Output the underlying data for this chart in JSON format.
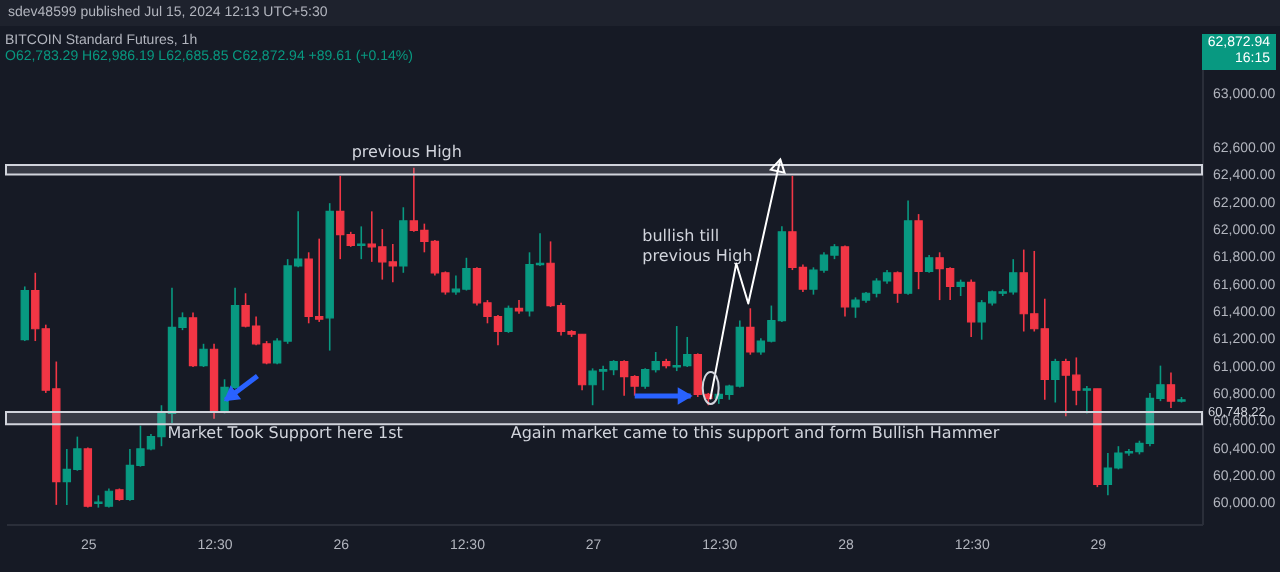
{
  "chart_data": {
    "type": "candlestick",
    "title": "BITCOIN Standard Futures, 1h",
    "subtitle": "O62,783.29 H62,986.19 L62,685.85 C62,872.94 +89.61 (+0.14%)",
    "xlim": [
      "2024-06-24T17:40",
      "2024-06-29T09:30"
    ],
    "xticks": [
      {
        "value": "2024-06-25T00:30",
        "label": "25"
      },
      {
        "value": "2024-06-25T12:30",
        "label": "12:30"
      },
      {
        "value": "2024-06-26T00:30",
        "label": "26"
      },
      {
        "value": "2024-06-26T12:30",
        "label": "12:30"
      },
      {
        "value": "2024-06-27T00:30",
        "label": "27"
      },
      {
        "value": "2024-06-27T12:30",
        "label": "12:30"
      },
      {
        "value": "2024-06-28T00:30",
        "label": "28"
      },
      {
        "value": "2024-06-28T12:30",
        "label": "12:30"
      },
      {
        "value": "2024-06-29T00:30",
        "label": "29"
      }
    ],
    "ylim": [
      59840,
      63180
    ],
    "yticks": [
      {
        "value": 60000,
        "label": "60,000.00"
      },
      {
        "value": 60200,
        "label": "60,200.00"
      },
      {
        "value": 60400,
        "label": "60,400.00"
      },
      {
        "value": 60600,
        "label": "60,600.00"
      },
      {
        "value": 60800,
        "label": "60,800.00"
      },
      {
        "value": 61000,
        "label": "61,000.00"
      },
      {
        "value": 61200,
        "label": "61,200.00"
      },
      {
        "value": 61400,
        "label": "61,400.00"
      },
      {
        "value": 61600,
        "label": "61,600.00"
      },
      {
        "value": 61800,
        "label": "61,800.00"
      },
      {
        "value": 62000,
        "label": "62,000.00"
      },
      {
        "value": 62200,
        "label": "62,200.00"
      },
      {
        "value": 62400,
        "label": "62,400.00"
      },
      {
        "value": 62600,
        "label": "62,600.00"
      },
      {
        "value": 63000,
        "label": "63,000.00"
      }
    ],
    "series": [
      {
        "color": "#089981",
        "x": [
          "2024-06-24T18:30",
          "2024-06-24T22:30",
          "2024-06-24T23:30",
          "2024-06-25T01:30",
          "2024-06-25T02:30",
          "2024-06-25T04:30",
          "2024-06-25T05:30",
          "2024-06-25T06:30",
          "2024-06-25T07:30",
          "2024-06-25T08:30",
          "2024-06-25T09:30",
          "2024-06-25T11:30",
          "2024-06-25T13:30",
          "2024-06-25T14:30",
          "2024-06-25T18:30",
          "2024-06-25T19:30",
          "2024-06-25T20:30",
          "2024-06-25T23:30",
          "2024-06-26T02:30",
          "2024-06-26T06:30",
          "2024-06-26T11:30",
          "2024-06-26T12:30",
          "2024-06-26T16:30",
          "2024-06-26T18:30",
          "2024-06-26T19:30",
          "2024-06-27T00:30",
          "2024-06-27T01:30",
          "2024-06-27T02:30",
          "2024-06-27T05:30",
          "2024-06-27T06:30",
          "2024-06-27T08:30",
          "2024-06-27T09:30",
          "2024-06-27T12:30",
          "2024-06-27T13:30",
          "2024-06-27T14:30",
          "2024-06-27T16:30",
          "2024-06-27T17:30",
          "2024-06-27T18:30",
          "2024-06-27T21:30",
          "2024-06-27T22:30",
          "2024-06-27T23:30",
          "2024-06-28T01:30",
          "2024-06-28T02:30",
          "2024-06-28T03:30",
          "2024-06-28T04:30",
          "2024-06-28T06:30",
          "2024-06-28T08:30",
          "2024-06-28T11:30",
          "2024-06-28T13:30",
          "2024-06-28T14:30",
          "2024-06-28T15:30",
          "2024-06-28T16:30",
          "2024-06-28T20:30",
          "2024-06-28T23:30",
          "2024-06-29T01:30",
          "2024-06-29T02:30",
          "2024-06-29T03:30",
          "2024-06-29T04:30",
          "2024-06-29T05:30",
          "2024-06-29T06:30",
          "2024-06-29T08:30"
        ],
        "ohlc": [
          [
            61190,
            61580,
            61180,
            61550
          ],
          [
            60150,
            60390,
            59980,
            60240
          ],
          [
            60240,
            60480,
            60230,
            60390
          ],
          [
            59990,
            60050,
            59960,
            60000
          ],
          [
            59970,
            60100,
            59960,
            60080
          ],
          [
            60020,
            60390,
            60010,
            60270
          ],
          [
            60270,
            60560,
            60260,
            60390
          ],
          [
            60390,
            60500,
            60380,
            60480
          ],
          [
            60480,
            60710,
            60410,
            60650
          ],
          [
            60650,
            61570,
            60580,
            61280
          ],
          [
            61280,
            61390,
            61260,
            61350
          ],
          [
            61000,
            61160,
            60990,
            61120
          ],
          [
            60660,
            60900,
            60650,
            60840
          ],
          [
            60840,
            61570,
            60830,
            61440
          ],
          [
            61020,
            61200,
            61010,
            61180
          ],
          [
            61180,
            61780,
            61160,
            61730
          ],
          [
            61730,
            62130,
            61720,
            61780
          ],
          [
            61350,
            62190,
            61110,
            62130
          ],
          [
            61880,
            62020,
            61780,
            61890
          ],
          [
            61730,
            62160,
            61680,
            62060
          ],
          [
            61540,
            61660,
            61520,
            61560
          ],
          [
            61560,
            61790,
            61550,
            61710
          ],
          [
            61250,
            61440,
            61240,
            61420
          ],
          [
            61400,
            61830,
            61360,
            61740
          ],
          [
            61740,
            61970,
            61730,
            61750
          ],
          [
            60860,
            60980,
            60710,
            60960
          ],
          [
            60960,
            61000,
            60820,
            60970
          ],
          [
            60970,
            61040,
            60930,
            61030
          ],
          [
            60850,
            60980,
            60830,
            60970
          ],
          [
            60970,
            61100,
            60950,
            61030
          ],
          [
            60990,
            61290,
            60960,
            61000
          ],
          [
            61000,
            61210,
            60990,
            61080
          ],
          [
            60760,
            60800,
            60720,
            60790
          ],
          [
            60790,
            60860,
            60750,
            60850
          ],
          [
            60850,
            61330,
            60840,
            61280
          ],
          [
            61100,
            61200,
            61080,
            61180
          ],
          [
            61180,
            61440,
            61170,
            61330
          ],
          [
            61330,
            62020,
            61320,
            61980
          ],
          [
            61560,
            61720,
            61520,
            61700
          ],
          [
            61700,
            61830,
            61680,
            61810
          ],
          [
            61810,
            61890,
            61780,
            61870
          ],
          [
            61430,
            61500,
            61350,
            61480
          ],
          [
            61480,
            61540,
            61460,
            61530
          ],
          [
            61530,
            61640,
            61500,
            61620
          ],
          [
            61620,
            61700,
            61600,
            61680
          ],
          [
            61530,
            62210,
            61520,
            62060
          ],
          [
            61690,
            61810,
            61680,
            61790
          ],
          [
            61580,
            61630,
            61510,
            61610
          ],
          [
            61320,
            61480,
            61190,
            61460
          ],
          [
            61460,
            61550,
            61440,
            61540
          ],
          [
            61530,
            61560,
            61510,
            61540
          ],
          [
            61540,
            61780,
            61520,
            61680
          ],
          [
            60900,
            61050,
            60730,
            61030
          ],
          [
            60820,
            60850,
            60650,
            60830
          ],
          [
            60130,
            60360,
            60050,
            60250
          ],
          [
            60250,
            60410,
            60240,
            60360
          ],
          [
            60360,
            60390,
            60340,
            60370
          ],
          [
            60370,
            60450,
            60350,
            60430
          ],
          [
            60430,
            60800,
            60410,
            60760
          ],
          [
            60760,
            61000,
            60740,
            60860
          ],
          [
            60740,
            60770,
            60730,
            60750
          ]
        ]
      },
      {
        "color": "#f23645",
        "x": [
          "2024-06-24T19:30",
          "2024-06-24T20:30",
          "2024-06-24T21:30",
          "2024-06-25T00:30",
          "2024-06-25T03:30",
          "2024-06-25T10:30",
          "2024-06-25T12:30",
          "2024-06-25T15:30",
          "2024-06-25T16:30",
          "2024-06-25T17:30",
          "2024-06-25T21:30",
          "2024-06-25T22:30",
          "2024-06-26T00:30",
          "2024-06-26T01:30",
          "2024-06-26T03:30",
          "2024-06-26T04:30",
          "2024-06-26T05:30",
          "2024-06-26T07:30",
          "2024-06-26T08:30",
          "2024-06-26T09:30",
          "2024-06-26T10:30",
          "2024-06-26T13:30",
          "2024-06-26T14:30",
          "2024-06-26T15:30",
          "2024-06-26T17:30",
          "2024-06-26T20:30",
          "2024-06-26T21:30",
          "2024-06-26T22:30",
          "2024-06-26T23:30",
          "2024-06-27T03:30",
          "2024-06-27T04:30",
          "2024-06-27T07:30",
          "2024-06-27T10:30",
          "2024-06-27T11:30",
          "2024-06-27T15:30",
          "2024-06-27T19:30",
          "2024-06-27T20:30",
          "2024-06-28T00:30",
          "2024-06-28T05:30",
          "2024-06-28T07:30",
          "2024-06-28T09:30",
          "2024-06-28T10:30",
          "2024-06-28T12:30",
          "2024-06-28T17:30",
          "2024-06-28T18:30",
          "2024-06-28T19:30",
          "2024-06-28T21:30",
          "2024-06-28T22:30",
          "2024-06-29T00:30",
          "2024-06-29T07:30"
        ],
        "ohlc": [
          [
            61550,
            61680,
            61180,
            61270
          ],
          [
            61270,
            61300,
            60800,
            60820
          ],
          [
            60830,
            61030,
            59980,
            60150
          ],
          [
            60390,
            60400,
            59960,
            59970
          ],
          [
            60090,
            60100,
            60010,
            60020
          ],
          [
            61350,
            61390,
            60990,
            61000
          ],
          [
            61120,
            61160,
            60610,
            60660
          ],
          [
            61440,
            61530,
            61280,
            61290
          ],
          [
            61290,
            61360,
            61150,
            61160
          ],
          [
            61160,
            61180,
            61010,
            61020
          ],
          [
            61780,
            61830,
            61310,
            61360
          ],
          [
            61360,
            61930,
            61320,
            61340
          ],
          [
            62130,
            62390,
            61780,
            61960
          ],
          [
            61960,
            61980,
            61870,
            61880
          ],
          [
            61890,
            62130,
            61760,
            61870
          ],
          [
            61870,
            62000,
            61630,
            61760
          ],
          [
            61760,
            61890,
            61610,
            61730
          ],
          [
            62060,
            62450,
            61980,
            61990
          ],
          [
            61990,
            62040,
            61830,
            61910
          ],
          [
            61910,
            61920,
            61660,
            61680
          ],
          [
            61680,
            61690,
            61520,
            61540
          ],
          [
            61710,
            61720,
            61440,
            61460
          ],
          [
            61460,
            61480,
            61310,
            61360
          ],
          [
            61360,
            61370,
            61150,
            61250
          ],
          [
            61420,
            61480,
            61380,
            61400
          ],
          [
            61750,
            61910,
            61430,
            61440
          ],
          [
            61440,
            61460,
            61220,
            61250
          ],
          [
            61250,
            61260,
            61210,
            61230
          ],
          [
            61230,
            61230,
            60820,
            60860
          ],
          [
            61030,
            61040,
            60780,
            60920
          ],
          [
            60920,
            60930,
            60780,
            60850
          ],
          [
            61030,
            61050,
            60980,
            61000
          ],
          [
            61080,
            61090,
            60770,
            60790
          ],
          [
            60790,
            60800,
            60710,
            60760
          ],
          [
            61280,
            61420,
            61080,
            61100
          ],
          [
            61980,
            62390,
            61700,
            61720
          ],
          [
            61720,
            61740,
            61540,
            61560
          ],
          [
            61870,
            61880,
            61360,
            61430
          ],
          [
            61680,
            61690,
            61460,
            61530
          ],
          [
            62060,
            62110,
            61560,
            61690
          ],
          [
            61790,
            61830,
            61480,
            61710
          ],
          [
            61710,
            61720,
            61480,
            61580
          ],
          [
            61610,
            61630,
            61210,
            61320
          ],
          [
            61680,
            61850,
            61250,
            61380
          ],
          [
            61380,
            61840,
            61250,
            61270
          ],
          [
            61270,
            61490,
            60750,
            60900
          ],
          [
            61030,
            61050,
            60630,
            60930
          ],
          [
            60930,
            61060,
            60710,
            60820
          ],
          [
            60830,
            60830,
            60110,
            60130
          ],
          [
            60860,
            60950,
            60690,
            60740
          ]
        ]
      }
    ],
    "bands": [
      {
        "axis": "y",
        "from": 62400,
        "to": 62470,
        "color": "#d1d4dc"
      },
      {
        "axis": "y",
        "from": 60570,
        "to": 60660,
        "color": "#d1d4dc"
      }
    ],
    "annotations": [
      "sdev48599 published Jul 15, 2024 12:13 UTC+5:30",
      "62,872.94",
      "16:15",
      "previous High",
      "bullish till\nprevious High",
      "Market Took Support here 1st",
      "Again market came to this support and form Bullish Hammer",
      "60,748.22"
    ]
  }
}
